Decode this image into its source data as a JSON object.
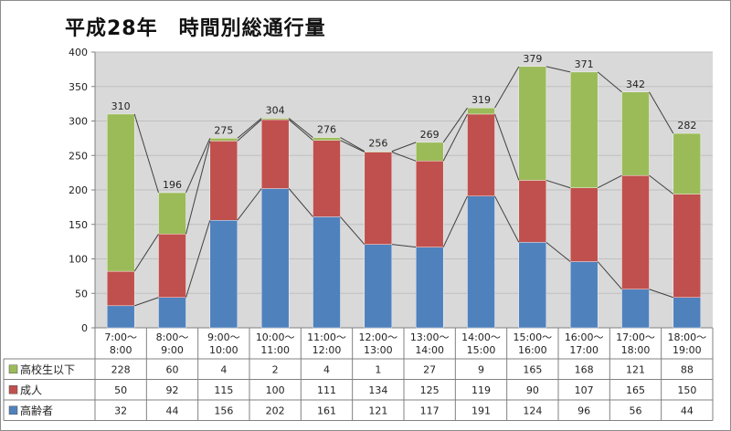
{
  "chart_data": {
    "type": "bar",
    "stacked": true,
    "title": "平成28年　時間別総通行量",
    "categories": [
      [
        "7:00〜",
        "8:00"
      ],
      [
        "8:00〜",
        "9:00"
      ],
      [
        "9:00〜",
        "10:00"
      ],
      [
        "10:00〜",
        "11:00"
      ],
      [
        "11:00〜",
        "12:00"
      ],
      [
        "12:00〜",
        "13:00"
      ],
      [
        "13:00〜",
        "14:00"
      ],
      [
        "14:00〜",
        "15:00"
      ],
      [
        "15:00〜",
        "16:00"
      ],
      [
        "16:00〜",
        "17:00"
      ],
      [
        "17:00〜",
        "18:00"
      ],
      [
        "18:00〜",
        "19:00"
      ]
    ],
    "series": [
      {
        "name": "高齢者",
        "color": "#4f81bd",
        "values": [
          32,
          44,
          156,
          202,
          161,
          121,
          117,
          191,
          124,
          96,
          56,
          44
        ]
      },
      {
        "name": "成人",
        "color": "#c0504d",
        "values": [
          50,
          92,
          115,
          100,
          111,
          134,
          125,
          119,
          90,
          107,
          165,
          150
        ]
      },
      {
        "name": "高校生以下",
        "color": "#9bbb59",
        "values": [
          228,
          60,
          4,
          2,
          4,
          1,
          27,
          9,
          165,
          168,
          121,
          88
        ]
      }
    ],
    "totals": [
      310,
      196,
      275,
      304,
      276,
      256,
      269,
      319,
      379,
      371,
      342,
      282
    ],
    "ylim": [
      0,
      400
    ],
    "yticks": [
      0,
      50,
      100,
      150,
      200,
      250,
      300,
      350,
      400
    ],
    "grid": true,
    "legend": "data-table-left",
    "table_rows": [
      "高校生以下",
      "成人",
      "高齢者"
    ],
    "xlabel": "",
    "ylabel": ""
  }
}
